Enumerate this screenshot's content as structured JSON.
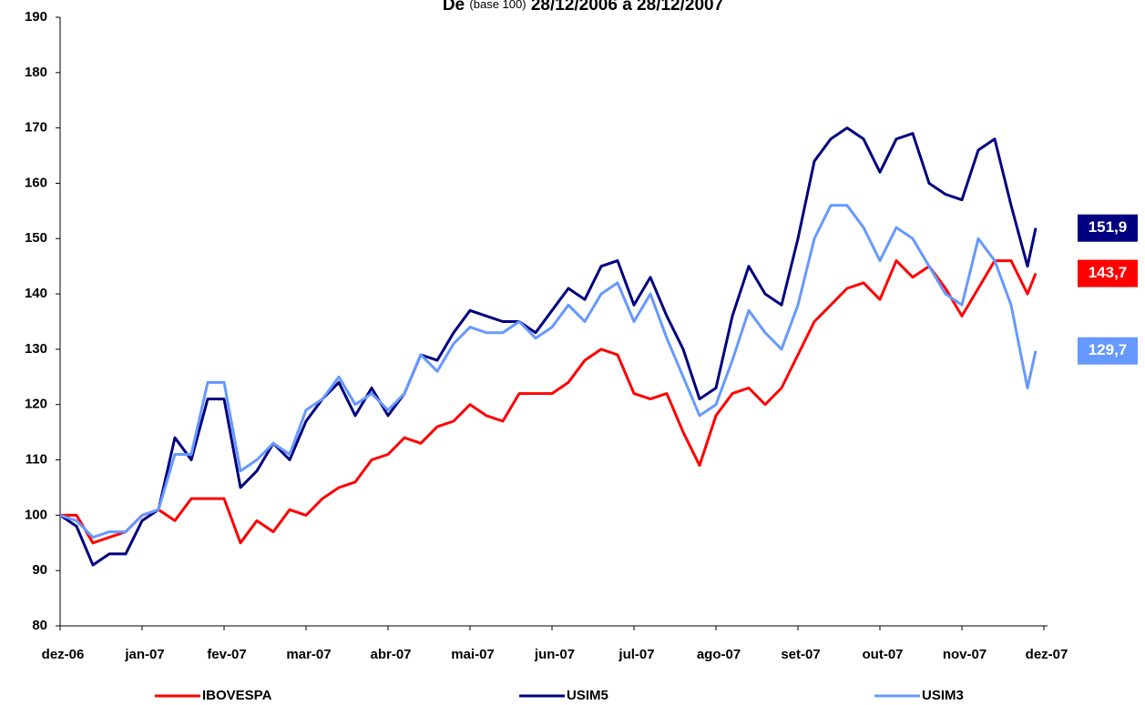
{
  "chart_data": {
    "type": "line",
    "title": [
      "De",
      "(base 100)",
      "28/12/2006 a 28/12/2007"
    ],
    "x": [
      0,
      0.2,
      0.4,
      0.6,
      0.8,
      1.0,
      1.2,
      1.4,
      1.6,
      1.8,
      2.0,
      2.2,
      2.4,
      2.6,
      2.8,
      3.0,
      3.2,
      3.4,
      3.6,
      3.8,
      4.0,
      4.2,
      4.4,
      4.6,
      4.8,
      5.0,
      5.2,
      5.4,
      5.6,
      5.8,
      6.0,
      6.2,
      6.4,
      6.6,
      6.8,
      7.0,
      7.2,
      7.4,
      7.6,
      7.8,
      8.0,
      8.2,
      8.4,
      8.6,
      8.8,
      9.0,
      9.2,
      9.4,
      9.6,
      9.8,
      10.0,
      10.2,
      10.4,
      10.6,
      10.8,
      11.0,
      11.2,
      11.4,
      11.6,
      11.8,
      11.9
    ],
    "series": [
      {
        "name": "IBOVESPA",
        "color": "#ff0000",
        "last_label": "143,7",
        "values": [
          100,
          100,
          95,
          96,
          97,
          100,
          101,
          99,
          103,
          103,
          103,
          95,
          99,
          97,
          101,
          100,
          103,
          105,
          106,
          110,
          111,
          114,
          113,
          116,
          117,
          120,
          118,
          117,
          122,
          122,
          122,
          124,
          128,
          130,
          129,
          122,
          121,
          122,
          115,
          109,
          118,
          122,
          123,
          120,
          123,
          129,
          135,
          138,
          141,
          142,
          139,
          146,
          143,
          145,
          141,
          136,
          141,
          146,
          146,
          140,
          143.7
        ]
      },
      {
        "name": "USIM5",
        "color": "#000080",
        "last_label": "151,9",
        "values": [
          100,
          98,
          91,
          93,
          93,
          99,
          101,
          114,
          110,
          121,
          121,
          105,
          108,
          113,
          110,
          117,
          121,
          124,
          118,
          123,
          118,
          122,
          129,
          128,
          133,
          137,
          136,
          135,
          135,
          133,
          137,
          141,
          139,
          145,
          146,
          138,
          143,
          136,
          130,
          121,
          123,
          136,
          145,
          140,
          138,
          150,
          164,
          168,
          170,
          168,
          162,
          168,
          169,
          160,
          158,
          157,
          166,
          168,
          156,
          145,
          151.9
        ]
      },
      {
        "name": "USIM3",
        "color": "#6699ff",
        "last_label": "129,7",
        "values": [
          100,
          99,
          96,
          97,
          97,
          100,
          101,
          111,
          111,
          124,
          124,
          108,
          110,
          113,
          111,
          119,
          121,
          125,
          120,
          122,
          119,
          122,
          129,
          126,
          131,
          134,
          133,
          133,
          135,
          132,
          134,
          138,
          135,
          140,
          142,
          135,
          140,
          132,
          125,
          118,
          120,
          128,
          137,
          133,
          130,
          138,
          150,
          156,
          156,
          152,
          146,
          152,
          150,
          145,
          140,
          138,
          150,
          146,
          138,
          123,
          129.7
        ]
      }
    ],
    "xlim": [
      0,
      12
    ],
    "xticks": [
      {
        "value": 0,
        "label": "dez-06"
      },
      {
        "value": 1,
        "label": "jan-07"
      },
      {
        "value": 2,
        "label": "fev-07"
      },
      {
        "value": 3,
        "label": "mar-07"
      },
      {
        "value": 4,
        "label": "abr-07"
      },
      {
        "value": 5,
        "label": "mai-07"
      },
      {
        "value": 6,
        "label": "jun-07"
      },
      {
        "value": 7,
        "label": "jul-07"
      },
      {
        "value": 8,
        "label": "ago-07"
      },
      {
        "value": 9,
        "label": "set-07"
      },
      {
        "value": 10,
        "label": "out-07"
      },
      {
        "value": 11,
        "label": "nov-07"
      },
      {
        "value": 12,
        "label": "dez-07"
      }
    ],
    "ylim": [
      80,
      190
    ],
    "yticks": [
      80,
      90,
      100,
      110,
      120,
      130,
      140,
      150,
      160,
      170,
      180,
      190
    ],
    "legend": "bottom"
  }
}
